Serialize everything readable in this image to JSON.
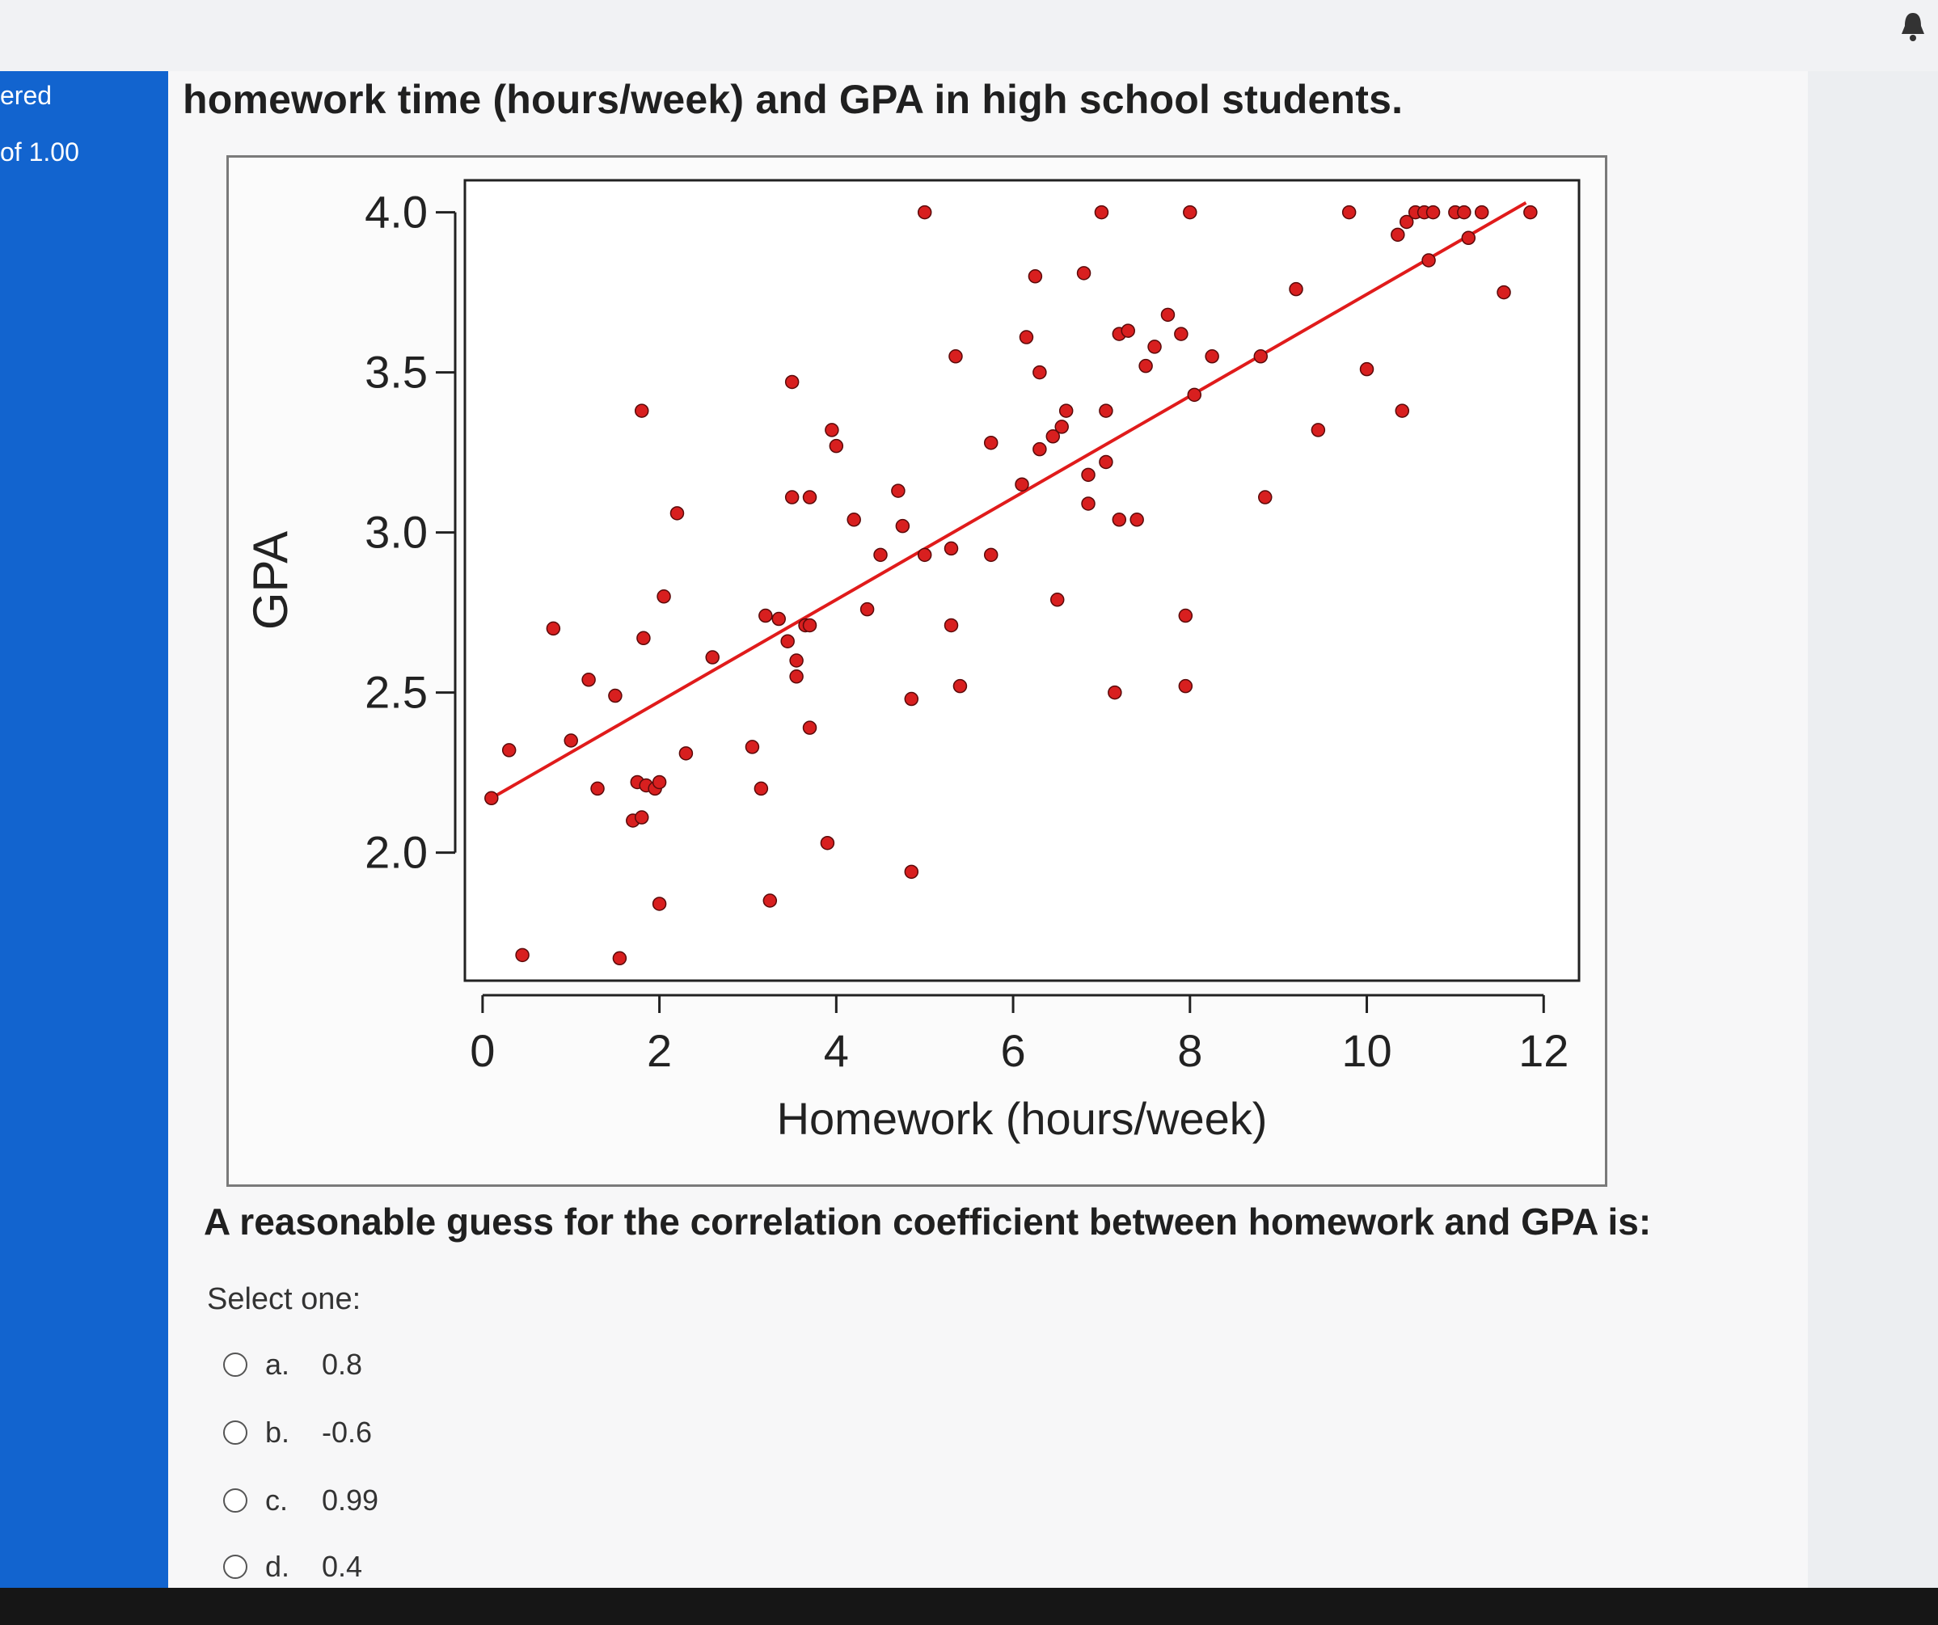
{
  "sidebar": {
    "line1": "ered",
    "line2": "of 1.00"
  },
  "question": {
    "intro": "homework time (hours/week) and GPA in high school students.",
    "prompt": "A reasonable guess for the correlation coefficient between homework and GPA is:",
    "select_label": "Select one:",
    "options": [
      {
        "letter": "a.",
        "value": "0.8"
      },
      {
        "letter": "b.",
        "value": "-0.6"
      },
      {
        "letter": "c.",
        "value": "0.99"
      },
      {
        "letter": "d.",
        "value": "0.4"
      }
    ]
  },
  "chart_data": {
    "type": "scatter",
    "xlabel": "Homework (hours/week)",
    "ylabel": "GPA",
    "xlim": [
      -0.2,
      12.4
    ],
    "ylim": [
      1.6,
      4.1
    ],
    "x_ticks": [
      "0",
      "2",
      "4",
      "6",
      "8",
      "10",
      "12"
    ],
    "y_ticks": [
      "2.0",
      "2.5",
      "3.0",
      "3.5",
      "4.0"
    ],
    "point_color": "#d81f1f",
    "line_color": "#e01b1b",
    "trend_line": {
      "x": [
        0.1,
        11.8
      ],
      "y": [
        2.17,
        4.03
      ]
    },
    "points": [
      [
        0.1,
        2.17
      ],
      [
        0.3,
        2.32
      ],
      [
        0.45,
        1.68
      ],
      [
        0.8,
        2.7
      ],
      [
        1.0,
        2.35
      ],
      [
        1.2,
        2.54
      ],
      [
        1.3,
        2.2
      ],
      [
        1.5,
        2.49
      ],
      [
        1.55,
        1.67
      ],
      [
        1.7,
        2.1
      ],
      [
        1.75,
        2.22
      ],
      [
        1.8,
        2.11
      ],
      [
        1.8,
        3.38
      ],
      [
        1.82,
        2.67
      ],
      [
        1.85,
        2.21
      ],
      [
        1.95,
        2.2
      ],
      [
        2.0,
        2.22
      ],
      [
        2.0,
        1.84
      ],
      [
        2.05,
        2.8
      ],
      [
        2.2,
        3.06
      ],
      [
        2.3,
        2.31
      ],
      [
        2.6,
        2.61
      ],
      [
        3.05,
        2.33
      ],
      [
        3.15,
        2.2
      ],
      [
        3.2,
        2.74
      ],
      [
        3.25,
        1.85
      ],
      [
        3.35,
        2.73
      ],
      [
        3.45,
        2.66
      ],
      [
        3.5,
        3.47
      ],
      [
        3.5,
        3.11
      ],
      [
        3.55,
        2.6
      ],
      [
        3.55,
        2.55
      ],
      [
        3.65,
        2.71
      ],
      [
        3.7,
        3.11
      ],
      [
        3.7,
        2.71
      ],
      [
        3.7,
        2.39
      ],
      [
        3.9,
        2.03
      ],
      [
        3.95,
        3.32
      ],
      [
        4.0,
        3.27
      ],
      [
        4.2,
        3.04
      ],
      [
        4.35,
        2.76
      ],
      [
        4.5,
        2.93
      ],
      [
        4.7,
        3.13
      ],
      [
        4.75,
        3.02
      ],
      [
        4.85,
        2.48
      ],
      [
        4.85,
        1.94
      ],
      [
        5.0,
        4.0
      ],
      [
        5.0,
        2.93
      ],
      [
        5.3,
        2.95
      ],
      [
        5.3,
        2.71
      ],
      [
        5.35,
        3.55
      ],
      [
        5.4,
        2.52
      ],
      [
        5.75,
        3.28
      ],
      [
        5.75,
        2.93
      ],
      [
        6.1,
        3.15
      ],
      [
        6.15,
        3.61
      ],
      [
        6.25,
        3.8
      ],
      [
        6.3,
        3.5
      ],
      [
        6.3,
        3.26
      ],
      [
        6.45,
        3.3
      ],
      [
        6.5,
        2.79
      ],
      [
        6.55,
        3.33
      ],
      [
        6.6,
        3.38
      ],
      [
        6.8,
        3.81
      ],
      [
        6.85,
        3.18
      ],
      [
        6.85,
        3.09
      ],
      [
        7.0,
        4.0
      ],
      [
        7.05,
        3.22
      ],
      [
        7.05,
        3.38
      ],
      [
        7.15,
        2.5
      ],
      [
        7.2,
        3.04
      ],
      [
        7.2,
        3.62
      ],
      [
        7.3,
        3.63
      ],
      [
        7.4,
        3.04
      ],
      [
        7.5,
        3.52
      ],
      [
        7.6,
        3.58
      ],
      [
        7.75,
        3.68
      ],
      [
        7.9,
        3.62
      ],
      [
        7.95,
        2.52
      ],
      [
        7.95,
        2.74
      ],
      [
        8.0,
        4.0
      ],
      [
        8.05,
        3.43
      ],
      [
        8.25,
        3.55
      ],
      [
        8.8,
        3.55
      ],
      [
        8.85,
        3.11
      ],
      [
        9.2,
        3.76
      ],
      [
        9.45,
        3.32
      ],
      [
        9.8,
        4.0
      ],
      [
        10.0,
        3.51
      ],
      [
        10.4,
        3.38
      ],
      [
        10.35,
        3.93
      ],
      [
        10.45,
        3.97
      ],
      [
        10.55,
        4.0
      ],
      [
        10.65,
        4.0
      ],
      [
        10.75,
        4.0
      ],
      [
        10.7,
        3.85
      ],
      [
        11.0,
        4.0
      ],
      [
        11.1,
        4.0
      ],
      [
        11.15,
        3.92
      ],
      [
        11.3,
        4.0
      ],
      [
        11.55,
        3.75
      ],
      [
        11.85,
        4.0
      ]
    ]
  }
}
